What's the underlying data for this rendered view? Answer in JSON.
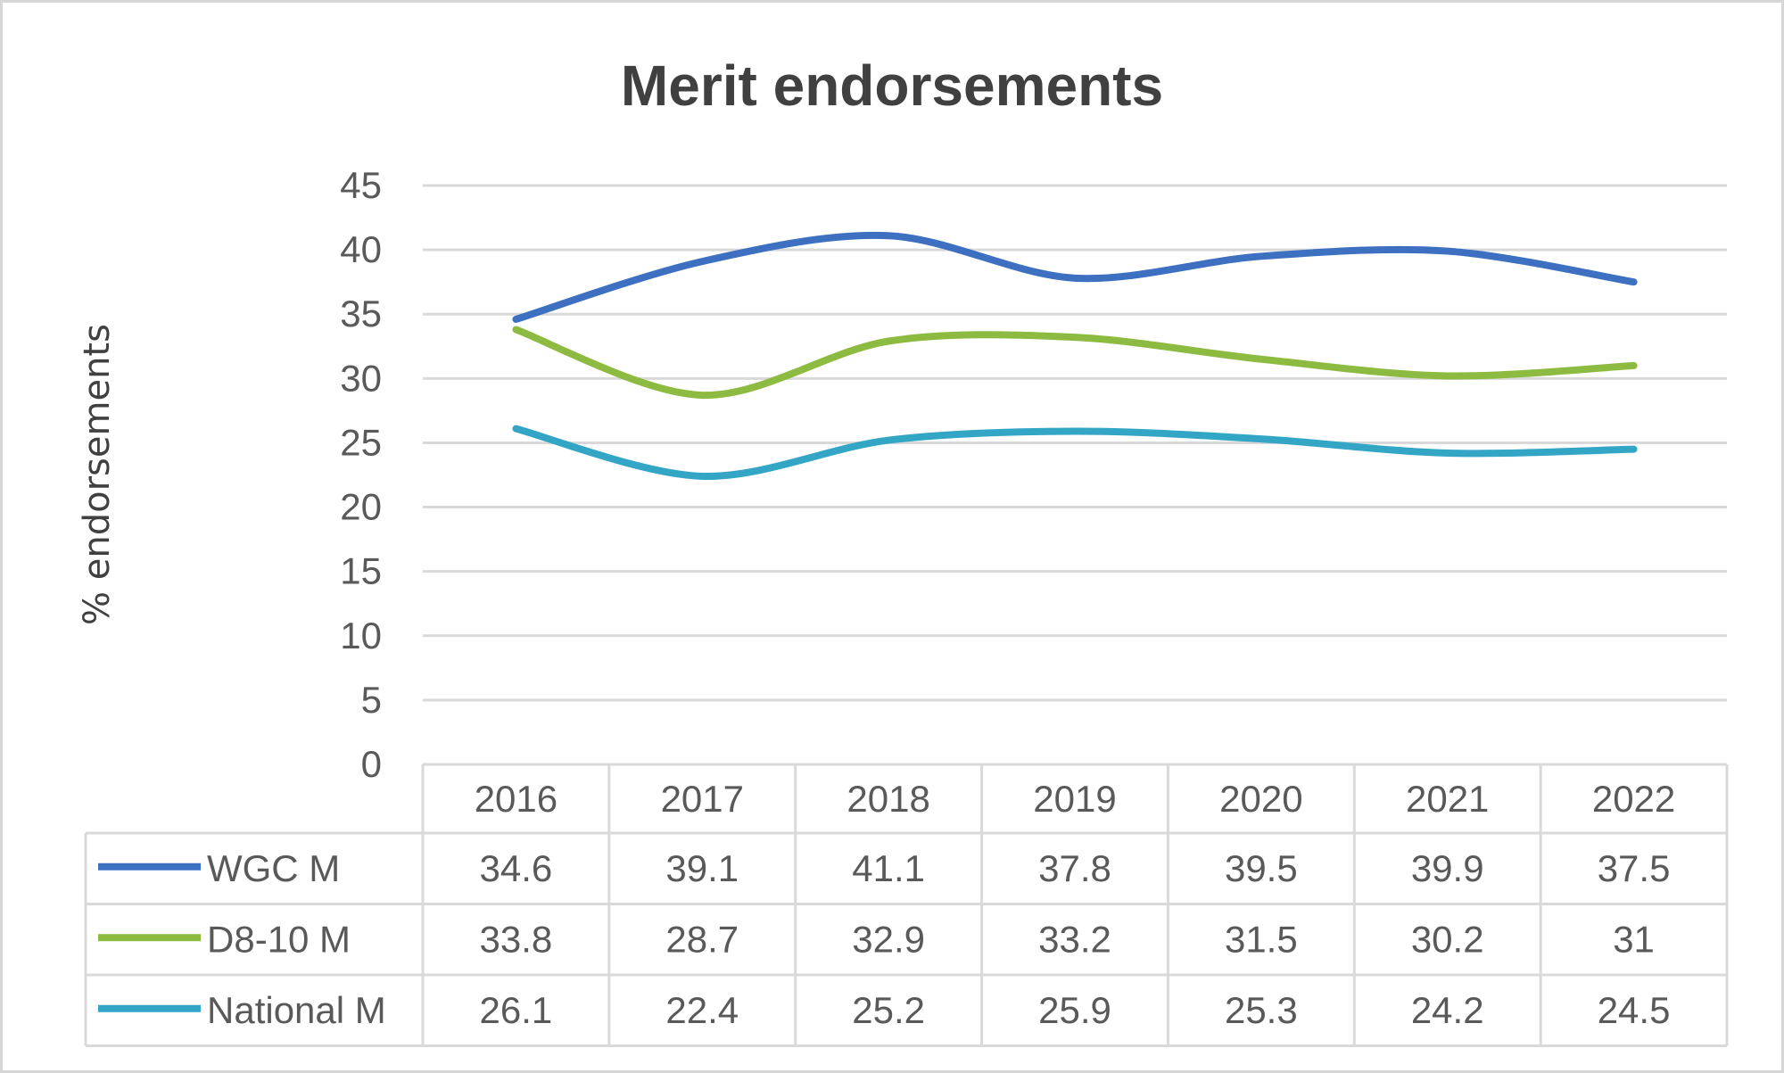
{
  "chart_data": {
    "type": "line",
    "title": "Merit endorsements",
    "xlabel": "",
    "ylabel": "% endorsements",
    "ylim": [
      0,
      45
    ],
    "yticks": [
      "0",
      "5",
      "10",
      "15",
      "20",
      "25",
      "30",
      "35",
      "40",
      "45"
    ],
    "grid": true,
    "legend": "data-table",
    "categories": [
      "2016",
      "2017",
      "2018",
      "2019",
      "2020",
      "2021",
      "2022"
    ],
    "series": [
      {
        "name": "WGC M",
        "color": "#3d70c0",
        "values": [
          34.6,
          39.1,
          41.1,
          37.8,
          39.5,
          39.9,
          37.5
        ],
        "labels": [
          "34.6",
          "39.1",
          "41.1",
          "37.8",
          "39.5",
          "39.9",
          "37.5"
        ]
      },
      {
        "name": "D8-10 M",
        "color": "#8dbb41",
        "values": [
          33.8,
          28.7,
          32.9,
          33.2,
          31.5,
          30.2,
          31
        ],
        "labels": [
          "33.8",
          "28.7",
          "32.9",
          "33.2",
          "31.5",
          "30.2",
          "31"
        ]
      },
      {
        "name": "National M",
        "color": "#33a6c6",
        "values": [
          26.1,
          22.4,
          25.2,
          25.9,
          25.3,
          24.2,
          24.5
        ],
        "labels": [
          "26.1",
          "22.4",
          "25.2",
          "25.9",
          "25.3",
          "24.2",
          "24.5"
        ]
      }
    ]
  }
}
